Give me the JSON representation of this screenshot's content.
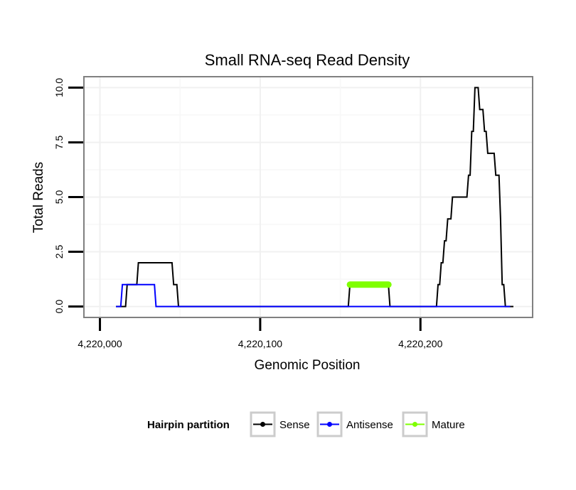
{
  "chart_data": {
    "type": "line",
    "title": "Small RNA-seq Read Density",
    "xlabel": "Genomic Position",
    "ylabel": "Total Reads",
    "xlim": [
      3990,
      4270
    ],
    "ylim": [
      -0.5,
      10.5
    ],
    "x_offset": 4216000,
    "x_ticks": [
      4000,
      4100,
      4200
    ],
    "x_tick_labels": [
      "4,220,000",
      "4,220,100",
      "4,220,200"
    ],
    "y_ticks": [
      0,
      2.5,
      5,
      7.5,
      10
    ],
    "y_tick_labels": [
      "0.0",
      "2.5",
      "5.0",
      "7.5",
      "10.0"
    ],
    "grid": true,
    "legend": {
      "title": "Hairpin partition",
      "position": "bottom",
      "entries": [
        {
          "label": "Sense",
          "color": "#000000"
        },
        {
          "label": "Antisense",
          "color": "#0000ff"
        },
        {
          "label": "Mature",
          "color": "#7fff00"
        }
      ]
    },
    "series": [
      {
        "name": "Sense",
        "color": "#000000",
        "x": [
          4010,
          4016,
          4017,
          4023,
          4024,
          4029,
          4030,
          4045,
          4046,
          4048,
          4049,
          4088,
          4140,
          4155,
          4156,
          4180,
          4181,
          4210,
          4211,
          4212,
          4213,
          4214,
          4215,
          4216,
          4217,
          4218,
          4219,
          4220,
          4221,
          4222,
          4223,
          4229,
          4230,
          4231,
          4232,
          4233,
          4234,
          4235,
          4236,
          4237,
          4238,
          4239,
          4240,
          4241,
          4242,
          4243,
          4244,
          4245,
          4246,
          4247,
          4248,
          4249,
          4250,
          4251,
          4252,
          4253,
          4254,
          4255,
          4256,
          4258
        ],
        "values": [
          0,
          0,
          1,
          1,
          2,
          2,
          2,
          2,
          1,
          1,
          0,
          0,
          0,
          0,
          1,
          1,
          0,
          0,
          1,
          1,
          2,
          2,
          3,
          3,
          4,
          4,
          4,
          5,
          5,
          5,
          5,
          5,
          6,
          6,
          8,
          8,
          10,
          10,
          10,
          9,
          9,
          9,
          8,
          8,
          7,
          7,
          7,
          7,
          7,
          6,
          6,
          6,
          4,
          1,
          1,
          0,
          0,
          0,
          0,
          0
        ]
      },
      {
        "name": "Antisense",
        "color": "#0000ff",
        "x": [
          4010,
          4013,
          4014,
          4034,
          4035,
          4256
        ],
        "values": [
          0,
          0,
          1,
          1,
          0,
          0
        ]
      },
      {
        "name": "Mature",
        "color": "#7fff00",
        "x": [
          4156,
          4180
        ],
        "values": [
          1,
          1
        ]
      }
    ]
  }
}
